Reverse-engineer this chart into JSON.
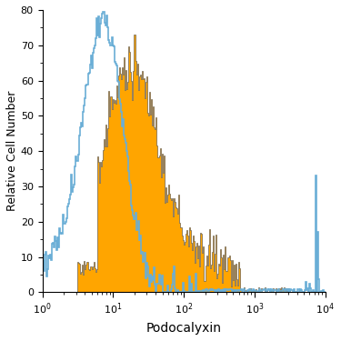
{
  "title": "",
  "xlabel": "Podocalyxin",
  "ylabel": "Relative Cell Number",
  "xlim": [
    1,
    10000
  ],
  "ylim": [
    0,
    80
  ],
  "yticks": [
    0,
    10,
    20,
    30,
    40,
    50,
    60,
    70,
    80
  ],
  "filled_color": "#FFA500",
  "filled_edge_color": "#444444",
  "open_color": "#6aaed6",
  "background_color": "#ffffff",
  "iso_peak_x": 7.5,
  "iso_peak_scale": 0.28,
  "iso_peak_height": 74,
  "filled_peak_x": 17,
  "filled_peak_scale": 0.38,
  "filled_peak_height": 62,
  "spike_x": 7500,
  "spike_height": 33,
  "spike_height2": 17,
  "n_bins": 300
}
